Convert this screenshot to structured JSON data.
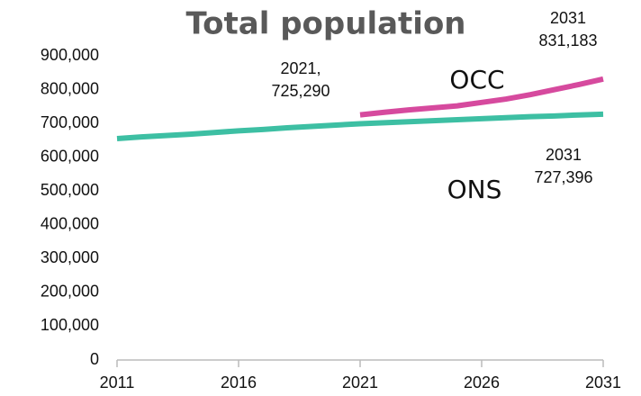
{
  "chart_data": {
    "type": "line",
    "title": "Total population",
    "x": [
      2011,
      2012,
      2013,
      2014,
      2015,
      2016,
      2017,
      2018,
      2019,
      2020,
      2021,
      2022,
      2023,
      2024,
      2025,
      2026,
      2027,
      2028,
      2029,
      2030,
      2031
    ],
    "series": [
      {
        "name": "ONS",
        "color": "#3dbfa3",
        "values": [
          655000,
          660000,
          664000,
          668000,
          673000,
          678000,
          682000,
          687000,
          691000,
          695000,
          699000,
          702000,
          705000,
          708000,
          711000,
          714000,
          717000,
          720000,
          722000,
          725000,
          727396
        ]
      },
      {
        "name": "OCC",
        "color": "#d64a9e",
        "values": [
          null,
          null,
          null,
          null,
          null,
          null,
          null,
          null,
          null,
          null,
          725290,
          733000,
          740000,
          746000,
          752000,
          762000,
          772000,
          785000,
          800000,
          815000,
          831183
        ]
      }
    ],
    "xlim": [
      2011,
      2031
    ],
    "xticks": [
      2011,
      2016,
      2021,
      2026,
      2031
    ],
    "ylim": [
      0,
      900000
    ],
    "yticks": [
      0,
      {
        "value": 100000,
        "label": "100,000"
      },
      {
        "value": 200000,
        "label": "200,000"
      },
      {
        "value": 300000,
        "label": "300,000"
      },
      {
        "value": 400000,
        "label": "400,000"
      },
      {
        "value": 500000,
        "label": "500,000"
      },
      {
        "value": 600000,
        "label": "600,000"
      },
      {
        "value": 700000,
        "label": "700,000"
      },
      {
        "value": 800000,
        "label": "800,000"
      },
      {
        "value": 900000,
        "label": "900,000"
      }
    ],
    "annotations": [
      [
        "2021,",
        "725,290"
      ],
      [
        "2031",
        "831,183"
      ],
      [
        "2031",
        "727,396"
      ]
    ]
  }
}
